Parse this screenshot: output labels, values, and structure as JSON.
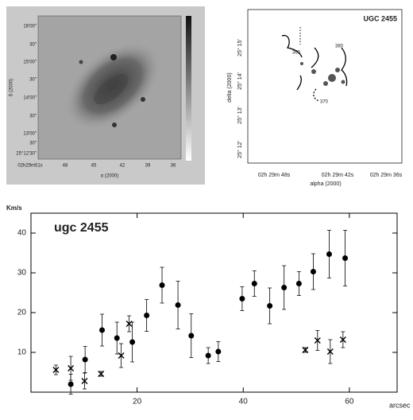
{
  "chart_data": {
    "type": "scatter",
    "title": "ugc 2455",
    "y_label": "Km/s",
    "x_label": "arcsec",
    "xlim": [
      0,
      69
    ],
    "ylim": [
      0,
      45
    ],
    "xticks": [
      20,
      40,
      60
    ],
    "yticks": [
      10,
      20,
      30,
      40
    ],
    "series": [
      {
        "marker": "circle",
        "color": "#000000",
        "x": [
          7.5,
          10.2,
          13.4,
          16.2,
          19.1,
          21.8,
          24.7,
          27.7,
          30.2,
          33.4,
          35.3,
          39.8,
          42.1,
          45,
          47.7,
          50.5,
          53.2,
          56.2,
          59.2
        ],
        "values": [
          2.0,
          8.2,
          15.6,
          13.6,
          12.6,
          19.3,
          26.9,
          21.9,
          14.2,
          9.2,
          10.2,
          23.5,
          27.3,
          21.7,
          26.3,
          27.3,
          30.3,
          34.7,
          33.7
        ],
        "errors": [
          2.5,
          3.3,
          4,
          4,
          5,
          4,
          4.5,
          6,
          5.5,
          2,
          2.5,
          3,
          3.2,
          4.5,
          5.5,
          3,
          4.5,
          6,
          7
        ]
      },
      {
        "marker": "cross",
        "color": "#000000",
        "x": [
          4.7,
          7.5,
          10.1,
          13.2,
          17.0,
          18.5,
          51.7,
          54.0,
          56.4,
          58.8
        ],
        "values": [
          5.6,
          6.0,
          2.8,
          4.6,
          9.2,
          17.2,
          10.6,
          13.0,
          10.2,
          13.2
        ],
        "errors": [
          1.2,
          3,
          2,
          0.6,
          3,
          2,
          0.6,
          2.5,
          3,
          2
        ]
      }
    ]
  },
  "images": [
    {
      "y_ticks": [
        "16'00\"",
        "30\"",
        "15'00\"",
        "30\"",
        "14'00\"",
        "30\"",
        "13'00\"",
        "30\"",
        "25°12'30\""
      ],
      "x_ticks": [
        "02h29m51s",
        "48",
        "45",
        "42",
        "39",
        "36"
      ],
      "x_label": "α (2000)",
      "y_label": "δ (2000)"
    },
    {
      "title": "UGC 2455",
      "contour_labels": [
        "360",
        "380",
        "370"
      ],
      "y_ticks": [
        "25° 15'",
        "25° 14'",
        "25° 13'",
        "25° 12'"
      ],
      "x_ticks": [
        "02h 29m 48s",
        "02h 29m 42s",
        "02h 29m 36s"
      ],
      "x_label": "alpha (2000)",
      "y_label": "delta (2000)"
    }
  ]
}
